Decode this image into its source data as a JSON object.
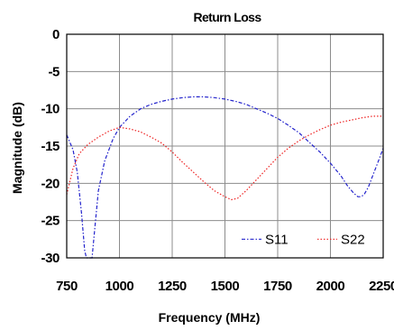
{
  "chart_data": {
    "type": "line",
    "title": "Return Loss",
    "xlabel": "Frequency (MHz)",
    "ylabel": "Magnitude (dB)",
    "xlim": [
      750,
      2250
    ],
    "ylim": [
      -30,
      0
    ],
    "xticks": [
      "750",
      "1000",
      "1250",
      "1500",
      "1750",
      "2000",
      "2250"
    ],
    "yticks": [
      "0",
      "-5",
      "-10",
      "-15",
      "-20",
      "-25",
      "-30"
    ],
    "grid": true,
    "legend_position": "bottom-right",
    "series": [
      {
        "name": "S11",
        "color": "#2222cc",
        "style": "dash-dot",
        "x": [
          750,
          780,
          800,
          820,
          835,
          843,
          848,
          860,
          870,
          880,
          900,
          930,
          970,
          1000,
          1050,
          1100,
          1150,
          1200,
          1250,
          1300,
          1350,
          1400,
          1450,
          1500,
          1550,
          1600,
          1650,
          1700,
          1750,
          1800,
          1850,
          1900,
          1950,
          2000,
          2050,
          2080,
          2110,
          2130,
          2145,
          2160,
          2180,
          2200,
          2225,
          2250
        ],
        "y": [
          -13.5,
          -15.5,
          -18.5,
          -24,
          -29,
          -30,
          -30,
          -30,
          -30,
          -27,
          -21,
          -17,
          -14,
          -12.5,
          -11,
          -10,
          -9.4,
          -9,
          -8.7,
          -8.5,
          -8.4,
          -8.4,
          -8.5,
          -8.7,
          -9,
          -9.4,
          -10,
          -10.6,
          -11.3,
          -12.2,
          -13.2,
          -14.5,
          -15.8,
          -17.3,
          -19,
          -20.3,
          -21.3,
          -21.8,
          -21.8,
          -21.5,
          -20.5,
          -19,
          -17.2,
          -15.3
        ]
      },
      {
        "name": "S22",
        "color": "#ee2222",
        "style": "dotted",
        "x": [
          750,
          780,
          810,
          850,
          900,
          950,
          1000,
          1050,
          1100,
          1150,
          1200,
          1250,
          1300,
          1350,
          1400,
          1450,
          1500,
          1530,
          1560,
          1600,
          1650,
          1700,
          1750,
          1800,
          1850,
          1900,
          1950,
          2000,
          2050,
          2100,
          2150,
          2200,
          2250
        ],
        "y": [
          -21.5,
          -18,
          -16,
          -14.8,
          -13.8,
          -13,
          -12.5,
          -12.7,
          -13.1,
          -13.8,
          -14.6,
          -15.8,
          -17.2,
          -18.5,
          -19.8,
          -21,
          -21.8,
          -22.2,
          -22,
          -21,
          -19.5,
          -18,
          -16.5,
          -15.3,
          -14.3,
          -13.5,
          -12.8,
          -12.2,
          -11.8,
          -11.5,
          -11.2,
          -11,
          -11
        ]
      }
    ]
  }
}
